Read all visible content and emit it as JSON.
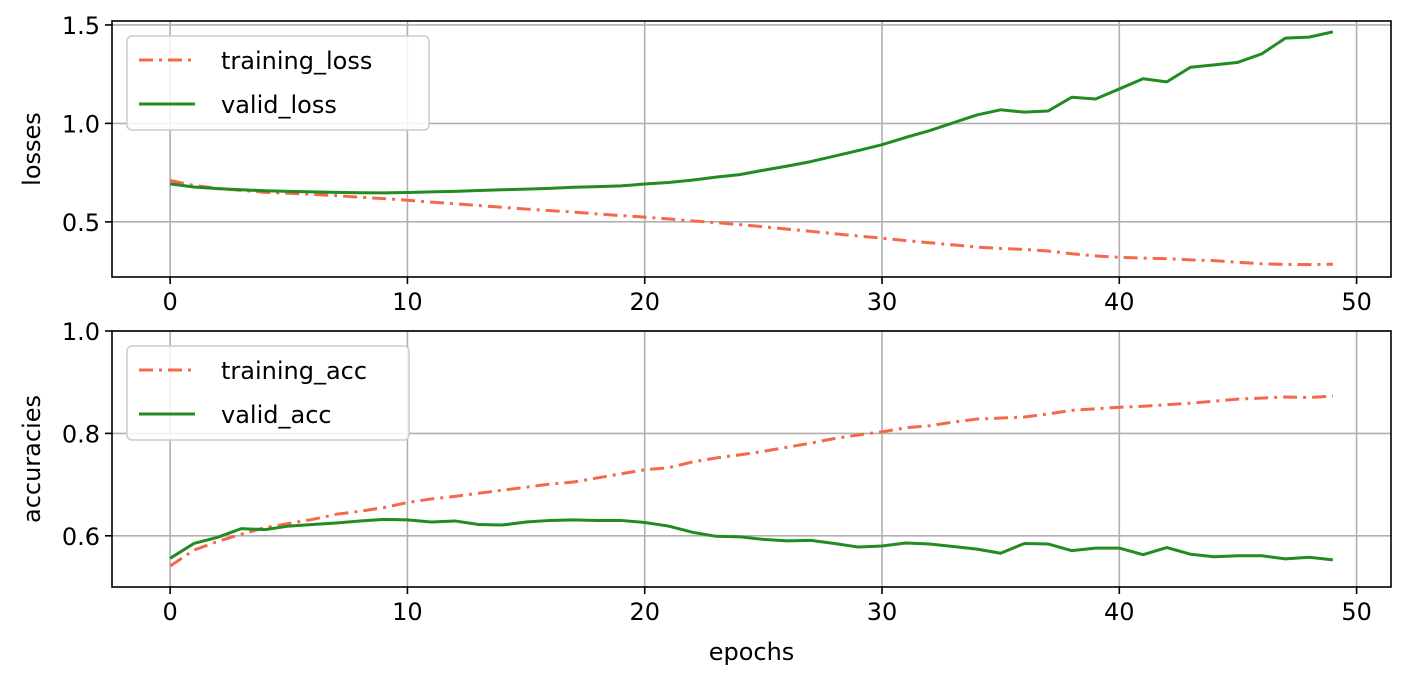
{
  "chart_data": [
    {
      "type": "line",
      "ylabel": "losses",
      "xlabel": "",
      "xlim": [
        -2.45,
        51.45
      ],
      "ylim": [
        0.22,
        1.52
      ],
      "xticks": [
        0,
        10,
        20,
        30,
        40,
        50
      ],
      "yticks": [
        0.5,
        1.0,
        1.5
      ],
      "xtick_labels": [
        "0",
        "10",
        "20",
        "30",
        "40",
        "50"
      ],
      "ytick_labels": [
        "0.5",
        "1.0",
        "1.5"
      ],
      "grid": true,
      "legend_position": "upper-left",
      "x": [
        0,
        1,
        2,
        3,
        4,
        5,
        6,
        7,
        8,
        9,
        10,
        11,
        12,
        13,
        14,
        15,
        16,
        17,
        18,
        19,
        20,
        21,
        22,
        23,
        24,
        25,
        26,
        27,
        28,
        29,
        30,
        31,
        32,
        33,
        34,
        35,
        36,
        37,
        38,
        39,
        40,
        41,
        42,
        43,
        44,
        45,
        46,
        47,
        48,
        49
      ],
      "series": [
        {
          "name": "training_loss",
          "color": "#f4694b",
          "style": "dashdot",
          "values": [
            0.71,
            0.685,
            0.67,
            0.66,
            0.65,
            0.645,
            0.64,
            0.633,
            0.625,
            0.618,
            0.61,
            0.6,
            0.592,
            0.583,
            0.574,
            0.565,
            0.557,
            0.55,
            0.54,
            0.532,
            0.524,
            0.515,
            0.505,
            0.496,
            0.486,
            0.475,
            0.463,
            0.452,
            0.44,
            0.428,
            0.417,
            0.405,
            0.394,
            0.383,
            0.372,
            0.365,
            0.36,
            0.352,
            0.338,
            0.327,
            0.32,
            0.316,
            0.313,
            0.307,
            0.303,
            0.295,
            0.287,
            0.284,
            0.283,
            0.285
          ]
        },
        {
          "name": "valid_loss",
          "color": "#228b22",
          "style": "solid",
          "values": [
            0.693,
            0.677,
            0.669,
            0.663,
            0.658,
            0.655,
            0.652,
            0.65,
            0.648,
            0.647,
            0.649,
            0.652,
            0.655,
            0.659,
            0.663,
            0.666,
            0.67,
            0.676,
            0.679,
            0.683,
            0.692,
            0.7,
            0.712,
            0.727,
            0.74,
            0.762,
            0.783,
            0.806,
            0.834,
            0.862,
            0.892,
            0.929,
            0.963,
            1.003,
            1.043,
            1.069,
            1.057,
            1.063,
            1.133,
            1.124,
            1.175,
            1.227,
            1.211,
            1.285,
            1.297,
            1.31,
            1.353,
            1.433,
            1.438,
            1.465
          ]
        }
      ]
    },
    {
      "type": "line",
      "ylabel": "accuracies",
      "xlabel": "epochs",
      "xlim": [
        -2.45,
        51.45
      ],
      "ylim": [
        0.5,
        1.0
      ],
      "xticks": [
        0,
        10,
        20,
        30,
        40,
        50
      ],
      "yticks": [
        0.6,
        0.8,
        1.0
      ],
      "xtick_labels": [
        "0",
        "10",
        "20",
        "30",
        "40",
        "50"
      ],
      "ytick_labels": [
        "0.6",
        "0.8",
        "1.0"
      ],
      "grid": true,
      "legend_position": "upper-left",
      "x": [
        0,
        1,
        2,
        3,
        4,
        5,
        6,
        7,
        8,
        9,
        10,
        11,
        12,
        13,
        14,
        15,
        16,
        17,
        18,
        19,
        20,
        21,
        22,
        23,
        24,
        25,
        26,
        27,
        28,
        29,
        30,
        31,
        32,
        33,
        34,
        35,
        36,
        37,
        38,
        39,
        40,
        41,
        42,
        43,
        44,
        45,
        46,
        47,
        48,
        49
      ],
      "series": [
        {
          "name": "training_acc",
          "color": "#f4694b",
          "style": "dashdot",
          "values": [
            0.541,
            0.572,
            0.589,
            0.603,
            0.616,
            0.624,
            0.632,
            0.642,
            0.648,
            0.655,
            0.665,
            0.672,
            0.677,
            0.683,
            0.689,
            0.695,
            0.701,
            0.705,
            0.713,
            0.721,
            0.729,
            0.733,
            0.744,
            0.752,
            0.758,
            0.765,
            0.773,
            0.781,
            0.79,
            0.797,
            0.803,
            0.811,
            0.815,
            0.822,
            0.828,
            0.83,
            0.832,
            0.838,
            0.845,
            0.848,
            0.851,
            0.853,
            0.856,
            0.859,
            0.863,
            0.867,
            0.869,
            0.871,
            0.87,
            0.873
          ]
        },
        {
          "name": "valid_acc",
          "color": "#228b22",
          "style": "solid",
          "values": [
            0.556,
            0.585,
            0.597,
            0.614,
            0.612,
            0.619,
            0.622,
            0.625,
            0.629,
            0.632,
            0.631,
            0.627,
            0.629,
            0.622,
            0.621,
            0.627,
            0.63,
            0.631,
            0.63,
            0.63,
            0.626,
            0.619,
            0.607,
            0.599,
            0.598,
            0.593,
            0.59,
            0.591,
            0.585,
            0.578,
            0.58,
            0.586,
            0.584,
            0.579,
            0.574,
            0.566,
            0.585,
            0.584,
            0.571,
            0.576,
            0.576,
            0.563,
            0.577,
            0.564,
            0.559,
            0.561,
            0.561,
            0.555,
            0.558,
            0.553
          ]
        }
      ]
    }
  ]
}
